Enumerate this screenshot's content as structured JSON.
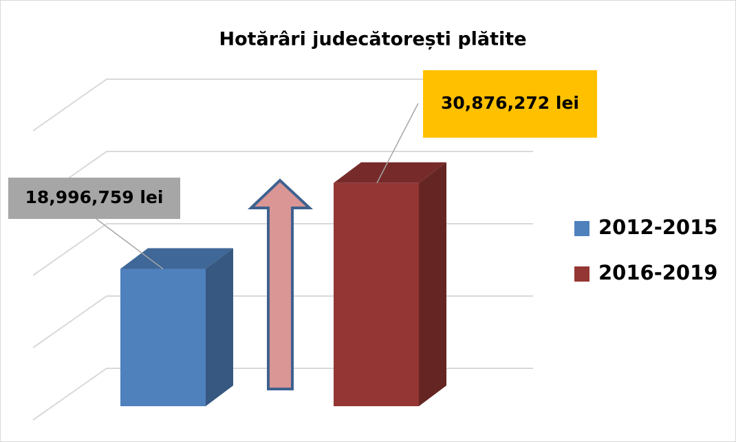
{
  "chart_data": {
    "type": "bar3d",
    "title": "Hotărâri judecătorești plătite",
    "series": [
      {
        "name": "2012-2015",
        "color": "#4f81bd",
        "values": [
          18996759
        ],
        "value_labels": [
          "18,996,759 lei"
        ],
        "label_color": "#a6a6a6"
      },
      {
        "name": "2016-2019",
        "color": "#943634",
        "values": [
          30876272
        ],
        "value_labels": [
          "30,876,272 lei"
        ],
        "label_color": "#ffc000"
      }
    ],
    "ylim": [
      0,
      40000000
    ],
    "yticks": [
      0,
      10000000,
      20000000,
      30000000,
      40000000
    ],
    "grid": true,
    "legend": "right"
  }
}
